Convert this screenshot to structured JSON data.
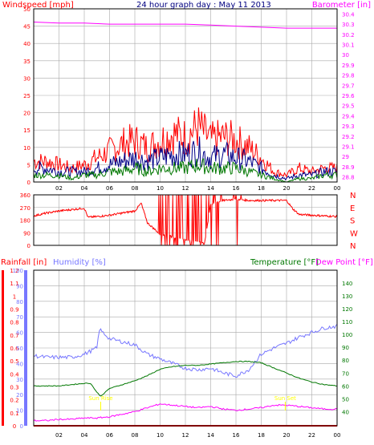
{
  "colors": {
    "background": "#ffffff",
    "frame": "#000000",
    "grid": "#a8a8a8",
    "wind": "#ff0000",
    "wind_avg": "#007700",
    "wind_mid": "#000088",
    "barometer": "#ff00ff",
    "direction": "#ff0000",
    "rain": "#ff0000",
    "humidity": "#7777ff",
    "temperature": "#007700",
    "dewpoint": "#ff00ff",
    "sun": "#ffff00",
    "title": "#000080"
  },
  "chart_data": [
    {
      "type": "line",
      "title": "24 hour graph day : May 11 2013",
      "ylabel": "Windspeed [mph]",
      "y2label": "Barometer [in]",
      "x_ticks": [
        "02",
        "04",
        "06",
        "08",
        "10",
        "12",
        "14",
        "16",
        "18",
        "20",
        "22",
        "00"
      ],
      "x_range": [
        0,
        24
      ],
      "ylim": [
        0,
        50
      ],
      "y_ticks": [
        0,
        5,
        10,
        15,
        20,
        25,
        30,
        35,
        40,
        45,
        50
      ],
      "y2lim": [
        28.75,
        30.45
      ],
      "y2_ticks": [
        28.8,
        28.9,
        29.0,
        29.1,
        29.2,
        29.3,
        29.4,
        29.5,
        29.6,
        29.7,
        29.8,
        29.9,
        30.0,
        30.1,
        30.2,
        30.3,
        30.4
      ],
      "y2_tick_labels": [
        "28.8",
        "28.9",
        "29",
        "29.1",
        "29.2",
        "29.3",
        "29.4",
        "29.5",
        "29.6",
        "29.7",
        "29.8",
        "29.9",
        "30",
        "30.1",
        "30.2",
        "30.3",
        "30.4"
      ],
      "grid": true,
      "series": [
        {
          "key": "gust",
          "axis": "left",
          "color": "#ff0000",
          "x": [
            0,
            1,
            2,
            3,
            4,
            5,
            6,
            7,
            8,
            9,
            10,
            11,
            12,
            13,
            14,
            15,
            16,
            17,
            18,
            19,
            20,
            21,
            22,
            23,
            24
          ],
          "values": [
            6,
            6,
            5,
            4,
            5,
            7,
            9,
            11,
            12,
            10,
            12,
            14,
            13,
            16,
            12,
            13,
            12,
            10,
            7,
            3,
            2,
            4,
            3,
            4,
            4
          ]
        },
        {
          "key": "mid",
          "axis": "left",
          "color": "#000088",
          "x": [
            0,
            1,
            2,
            3,
            4,
            5,
            6,
            7,
            8,
            9,
            10,
            11,
            12,
            13,
            14,
            15,
            16,
            17,
            18,
            19,
            20,
            21,
            22,
            23,
            24
          ],
          "values": [
            4,
            4,
            3,
            3,
            3,
            4,
            5,
            6,
            7,
            6,
            7,
            8,
            8,
            9,
            7,
            8,
            7,
            6,
            4,
            2,
            1,
            2,
            2,
            3,
            3
          ]
        },
        {
          "key": "avg",
          "axis": "left",
          "color": "#007700",
          "x": [
            0,
            1,
            2,
            3,
            4,
            5,
            6,
            7,
            8,
            9,
            10,
            11,
            12,
            13,
            14,
            15,
            16,
            17,
            18,
            19,
            20,
            21,
            22,
            23,
            24
          ],
          "values": [
            2,
            2,
            2,
            1,
            2,
            2,
            3,
            3,
            4,
            3,
            4,
            4,
            4,
            5,
            4,
            4,
            4,
            3,
            2,
            1,
            0,
            1,
            1,
            2,
            2
          ]
        },
        {
          "key": "barometer",
          "axis": "right",
          "color": "#ff00ff",
          "x": [
            0,
            2,
            4,
            6,
            8,
            10,
            12,
            14,
            16,
            18,
            20,
            22,
            24
          ],
          "values": [
            30.32,
            30.31,
            30.31,
            30.3,
            30.3,
            30.3,
            30.3,
            30.29,
            30.28,
            30.27,
            30.26,
            30.26,
            30.26
          ]
        }
      ]
    },
    {
      "type": "line",
      "title": "",
      "ylim": [
        0,
        360
      ],
      "y_ticks": [
        0,
        90,
        180,
        270,
        360
      ],
      "y_tick_labels": [
        "0",
        "90",
        "180",
        "270",
        "360"
      ],
      "compass_labels": [
        "N",
        "W",
        "S",
        "E",
        "N"
      ],
      "x_ticks": [
        "02",
        "04",
        "06",
        "08",
        "10",
        "12",
        "14",
        "16",
        "18",
        "20",
        "22",
        "00"
      ],
      "x_range": [
        0,
        24
      ],
      "grid": true,
      "series": [
        {
          "key": "direction",
          "color": "#ff0000",
          "x": [
            0,
            1,
            2,
            3,
            4,
            4.3,
            5,
            6,
            7,
            8,
            8.5,
            9,
            10,
            11,
            12,
            13,
            13.5,
            14,
            15,
            16,
            17,
            18,
            19,
            20,
            20.5,
            21,
            22,
            23,
            24
          ],
          "values": [
            210,
            230,
            245,
            255,
            265,
            200,
            205,
            215,
            230,
            245,
            300,
            160,
            80,
            60,
            40,
            30,
            10,
            290,
            320,
            330,
            320,
            320,
            320,
            320,
            260,
            220,
            215,
            210,
            205
          ]
        }
      ]
    },
    {
      "type": "line",
      "title": "",
      "ylabel_rain": "Rainfall [in]",
      "ylabel_humidity": "Humidity [%]",
      "ylabel_temperature": "Temperature [°F]",
      "ylabel_dewpoint": "Dew Point [°F]",
      "x_ticks": [
        "02",
        "04",
        "06",
        "08",
        "10",
        "12",
        "14",
        "16",
        "18",
        "20",
        "22",
        "00"
      ],
      "x_range": [
        0,
        24
      ],
      "rain_lim": [
        0,
        1.2
      ],
      "rain_ticks": [
        0,
        0.1,
        0.2,
        0.3,
        0.4,
        0.5,
        0.6,
        0.7,
        0.8,
        0.9,
        1.0,
        1.1,
        1.2
      ],
      "rain_tick_labels": [
        "0",
        "0.1",
        "0.2",
        "0.3",
        "0.4",
        "0.5",
        "0.6",
        "0.7",
        "0.8",
        "0.9",
        "1",
        "1.1",
        "1.2"
      ],
      "humidity_lim": [
        0,
        100
      ],
      "humidity_ticks": [
        0,
        10,
        20,
        30,
        40,
        50,
        60,
        70,
        80,
        90,
        100
      ],
      "temp_lim": [
        29,
        150
      ],
      "temp_ticks": [
        40,
        50,
        60,
        70,
        80,
        90,
        100,
        110,
        120,
        130,
        140
      ],
      "grid": true,
      "sun_labels": [
        "Sun Rise",
        "Sun Set"
      ],
      "sun_x": [
        5.3,
        19.9
      ],
      "series": [
        {
          "key": "humidity",
          "axis": "humidity",
          "color": "#7777ff",
          "x": [
            0,
            1,
            2,
            3,
            4,
            5,
            5.2,
            6,
            7,
            8,
            9,
            10,
            11,
            12,
            13,
            14,
            15,
            16,
            17,
            18,
            19,
            20,
            21,
            22,
            23,
            24
          ],
          "values": [
            45,
            44,
            44,
            44,
            46,
            50,
            62,
            56,
            54,
            52,
            46,
            43,
            40,
            37,
            36,
            37,
            34,
            32,
            36,
            46,
            50,
            53,
            57,
            60,
            63,
            64
          ]
        },
        {
          "key": "temperature",
          "axis": "temp",
          "color": "#007700",
          "x": [
            0,
            1,
            2,
            3,
            4,
            4.5,
            5,
            5.3,
            6,
            7,
            8,
            9,
            10,
            11,
            12,
            13,
            14,
            15,
            16,
            17,
            18,
            19,
            20,
            21,
            22,
            23,
            24
          ],
          "values": [
            60,
            60,
            60,
            61,
            62,
            62,
            55,
            52,
            58,
            61,
            64,
            68,
            73,
            75,
            76,
            76,
            77,
            78,
            79,
            79,
            78,
            74,
            70,
            66,
            63,
            61,
            60
          ]
        },
        {
          "key": "dewpoint",
          "axis": "temp",
          "color": "#ff00ff",
          "x": [
            0,
            1,
            2,
            3,
            4,
            5,
            6,
            7,
            8,
            9,
            10,
            11,
            12,
            13,
            14,
            15,
            16,
            17,
            18,
            19,
            20,
            21,
            22,
            23,
            24
          ],
          "values": [
            33,
            33,
            34,
            34,
            35,
            35,
            36,
            38,
            40,
            43,
            46,
            45,
            44,
            43,
            44,
            42,
            41,
            42,
            43,
            45,
            45,
            44,
            43,
            42,
            42
          ]
        },
        {
          "key": "rain",
          "axis": "rain",
          "color": "#ff0000",
          "x": [
            0,
            24
          ],
          "values": [
            0,
            0
          ]
        }
      ]
    }
  ]
}
